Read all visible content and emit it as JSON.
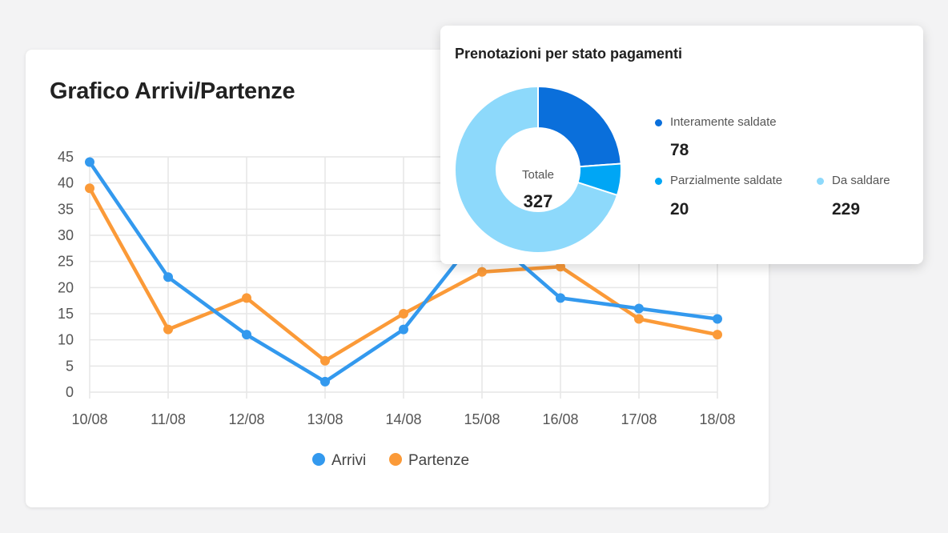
{
  "line_card": {
    "title": "Grafico Arrivi/Partenze"
  },
  "donut_card": {
    "title": "Prenotazioni per stato pagamenti",
    "center_label": "Totale",
    "center_value": "327"
  },
  "colors": {
    "arrivi": "#3399ee",
    "partenze": "#fb9a38",
    "interamente": "#0a6fdb",
    "parzialmente": "#00a6f5",
    "da_saldare": "#8dd9fb",
    "grid": "#e6e6e6",
    "axis_text": "#555555"
  },
  "chart_data": [
    {
      "type": "line",
      "title": "Grafico Arrivi/Partenze",
      "categories": [
        "10/08",
        "11/08",
        "12/08",
        "13/08",
        "14/08",
        "15/08",
        "16/08",
        "17/08",
        "18/08"
      ],
      "series": [
        {
          "name": "Arrivi",
          "values": [
            44,
            22,
            11,
            2,
            12,
            31,
            18,
            16,
            14
          ]
        },
        {
          "name": "Partenze",
          "values": [
            39,
            12,
            18,
            6,
            15,
            23,
            24,
            14,
            11
          ]
        }
      ],
      "ylim": [
        0,
        45
      ],
      "yticks": [
        0,
        5,
        10,
        15,
        20,
        25,
        30,
        35,
        40,
        45
      ],
      "grid": true,
      "legend": "bottom"
    },
    {
      "type": "pie",
      "title": "Prenotazioni per stato pagamenti",
      "total_label": "Totale",
      "total": 327,
      "slices": [
        {
          "label": "Interamente saldate",
          "value": 78
        },
        {
          "label": "Parzialmente saldate",
          "value": 20
        },
        {
          "label": "Da saldare",
          "value": 229
        }
      ],
      "legend": "right"
    }
  ]
}
